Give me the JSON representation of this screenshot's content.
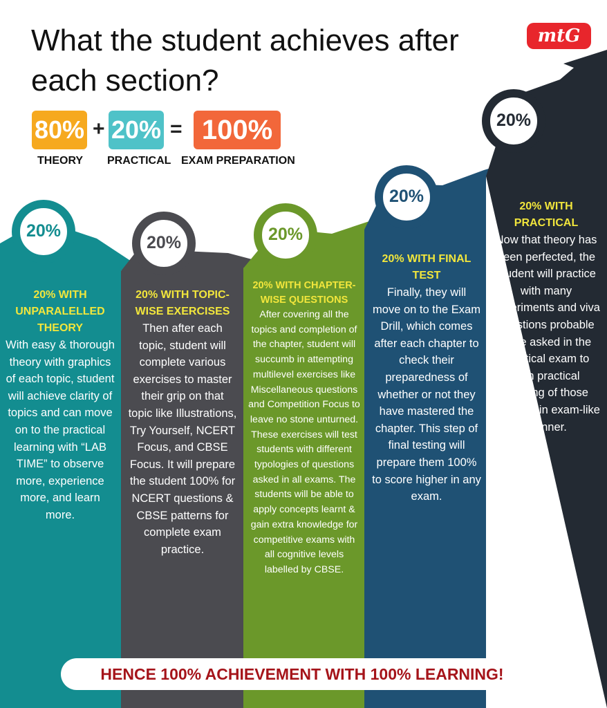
{
  "header": {
    "title": "What the student achieves after each section?",
    "logo": "mtG"
  },
  "formula": {
    "items": [
      {
        "value": "80%",
        "label": "THEORY"
      },
      {
        "value": "20%",
        "label": "PRACTICAL"
      },
      {
        "value": "100%",
        "label": "EXAM PREPARATION"
      }
    ],
    "operators": [
      "+",
      "="
    ]
  },
  "columns": [
    {
      "percent": "20%",
      "heading": "20% WITH UNPARALELLED THEORY",
      "body": "With easy & thorough theory with graphics of each topic, student will achieve clarity of topics and can move on to the practical learning with “LAB TIME” to observe more, experience more, and learn more."
    },
    {
      "percent": "20%",
      "heading": "20% WITH TOPIC-WISE EXERCISES",
      "body": "Then after each topic, student will complete various exercises to master their grip on that topic like Illustrations, Try Yourself, NCERT Focus, and CBSE Focus. It will prepare the student 100% for NCERT questions & CBSE patterns for complete exam practice."
    },
    {
      "percent": "20%",
      "heading": "20% WITH CHAPTER-WISE QUESTIONS",
      "body": "After covering all the topics and completion of the chapter, student will succumb in attempting multilevel exercises like Miscellaneous questions and Competition Focus to leave no stone unturned. These exercises will test students with different typologies of questions asked in all exams. The students will be able to apply concepts learnt & gain extra knowledge for competitive exams with all cognitive levels labelled by CBSE."
    },
    {
      "percent": "20%",
      "heading": "20% WITH FINAL TEST",
      "body": "Finally, they will move on to the Exam Drill, which comes after each chapter to check their preparedness of whether or not they have mastered the chapter. This step of final testing will prepare them 100% to score higher in any exam."
    },
    {
      "percent": "20%",
      "heading": "20% WITH PRACTICAL",
      "body": "Now that theory has been perfected, the student will practice with many experiments and viva questions probable to be asked in the practical exam to gain practical learning of those chapters in exam-like manner."
    }
  ],
  "footer": "HENCE 100% ACHIEVEMENT WITH 100% LEARNING!"
}
